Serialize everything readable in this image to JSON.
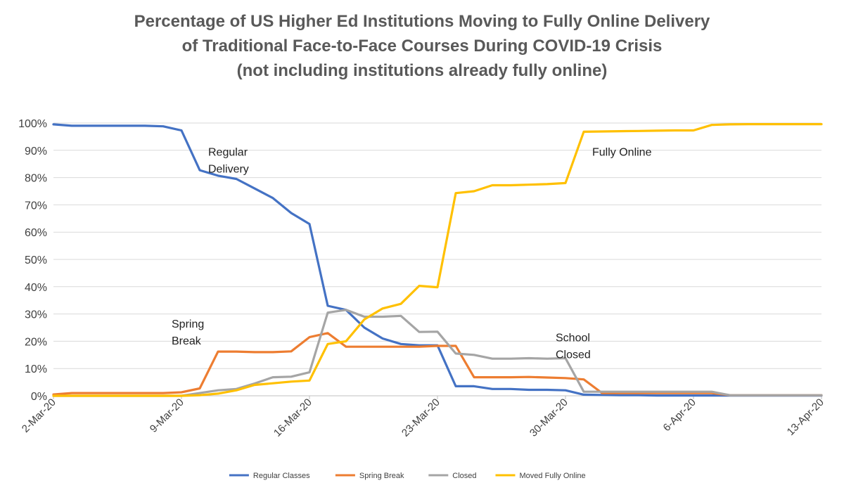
{
  "chart_data": {
    "type": "line",
    "title": [
      "Percentage of US Higher Ed Institutions Moving to Fully Online Delivery",
      "of Traditional Face-to-Face Courses During COVID-19 Crisis",
      "(not including institutions already fully online)"
    ],
    "xlabel": "",
    "ylabel": "",
    "x_tick_labels": [
      "2-Mar-20",
      "9-Mar-20",
      "16-Mar-20",
      "23-Mar-20",
      "30-Mar-20",
      "6-Apr-20",
      "13-Apr-20"
    ],
    "y_tick_labels": [
      "0%",
      "10%",
      "20%",
      "30%",
      "40%",
      "50%",
      "60%",
      "70%",
      "80%",
      "90%",
      "100%"
    ],
    "ylim": [
      0,
      100
    ],
    "xlim": [
      "2020-03-02",
      "2020-04-13"
    ],
    "grid": true,
    "legend_position": "bottom",
    "x": [
      "2020-03-02",
      "2020-03-03",
      "2020-03-04",
      "2020-03-05",
      "2020-03-06",
      "2020-03-07",
      "2020-03-08",
      "2020-03-09",
      "2020-03-10",
      "2020-03-11",
      "2020-03-12",
      "2020-03-13",
      "2020-03-14",
      "2020-03-15",
      "2020-03-16",
      "2020-03-17",
      "2020-03-18",
      "2020-03-19",
      "2020-03-20",
      "2020-03-21",
      "2020-03-22",
      "2020-03-23",
      "2020-03-24",
      "2020-03-25",
      "2020-03-26",
      "2020-03-27",
      "2020-03-28",
      "2020-03-29",
      "2020-03-30",
      "2020-03-31",
      "2020-04-01",
      "2020-04-02",
      "2020-04-03",
      "2020-04-04",
      "2020-04-05",
      "2020-04-06",
      "2020-04-07",
      "2020-04-08",
      "2020-04-09",
      "2020-04-10",
      "2020-04-11",
      "2020-04-12",
      "2020-04-13"
    ],
    "series": [
      {
        "name": "Regular Classes",
        "color": "#4472C4",
        "values": [
          99.5,
          99,
          99,
          99,
          99,
          99,
          98.8,
          97.3,
          82.7,
          80.7,
          79.5,
          76,
          72.5,
          67,
          63,
          33,
          31.5,
          25,
          21,
          19,
          18.5,
          18.5,
          3.5,
          3.5,
          2.5,
          2.5,
          2.2,
          2.2,
          2,
          0.4,
          0.3,
          0.2,
          0.2,
          0.1,
          0.1,
          0.1,
          0.1,
          0.1,
          0.1,
          0.1,
          0.1,
          0.1,
          0.1
        ]
      },
      {
        "name": "Spring Break",
        "color": "#ED7D31",
        "values": [
          0.5,
          1,
          1,
          1,
          1,
          1,
          1,
          1.3,
          2.7,
          16.2,
          16.2,
          16,
          16,
          16.3,
          21.5,
          23,
          18,
          18,
          18,
          18,
          18,
          18.3,
          18.3,
          6.8,
          6.8,
          6.8,
          6.9,
          6.7,
          6.5,
          6,
          1,
          1,
          1,
          1,
          1,
          1,
          1,
          0.2,
          0.2,
          0.2,
          0.2,
          0.2,
          0.2
        ]
      },
      {
        "name": "Closed",
        "color": "#A5A5A5",
        "values": [
          0,
          0,
          0,
          0,
          0,
          0,
          0,
          0,
          1,
          2,
          2.5,
          4.5,
          6.8,
          7,
          8.6,
          30.5,
          31.5,
          29,
          29,
          29.3,
          23.4,
          23.5,
          15.5,
          15,
          13.6,
          13.6,
          13.8,
          13.6,
          13.8,
          1.5,
          1.5,
          1.5,
          1.5,
          1.5,
          1.5,
          1.5,
          1.5,
          0.2,
          0.2,
          0.2,
          0.2,
          0.2,
          0.2
        ]
      },
      {
        "name": "Moved Fully Online",
        "color": "#FFC000",
        "values": [
          0,
          0,
          0,
          0,
          0,
          0,
          0,
          0,
          0.2,
          0.8,
          2,
          4,
          4.6,
          5.2,
          5.6,
          19,
          20,
          28,
          32,
          33.7,
          40.3,
          39.8,
          74.3,
          75,
          77.2,
          77.2,
          77.4,
          77.6,
          78,
          96.8,
          96.9,
          97,
          97.1,
          97.2,
          97.3,
          97.3,
          99.3,
          99.5,
          99.6,
          99.6,
          99.6,
          99.6,
          99.6
        ]
      }
    ],
    "annotations": [
      {
        "lines": [
          "Regular",
          "Delivery"
        ],
        "series": "Regular Classes",
        "anchor_date": "2020-03-10",
        "anchor_value": 88
      },
      {
        "lines": [
          "Fully Online"
        ],
        "series": "Moved Fully Online",
        "anchor_date": "2020-03-31",
        "anchor_value": 88
      },
      {
        "lines": [
          "Spring",
          "Break"
        ],
        "series": "Spring Break",
        "anchor_date": "2020-03-08",
        "anchor_value": 25
      },
      {
        "lines": [
          "School",
          "Closed"
        ],
        "series": "Closed",
        "anchor_date": "2020-03-29",
        "anchor_value": 20
      }
    ]
  }
}
